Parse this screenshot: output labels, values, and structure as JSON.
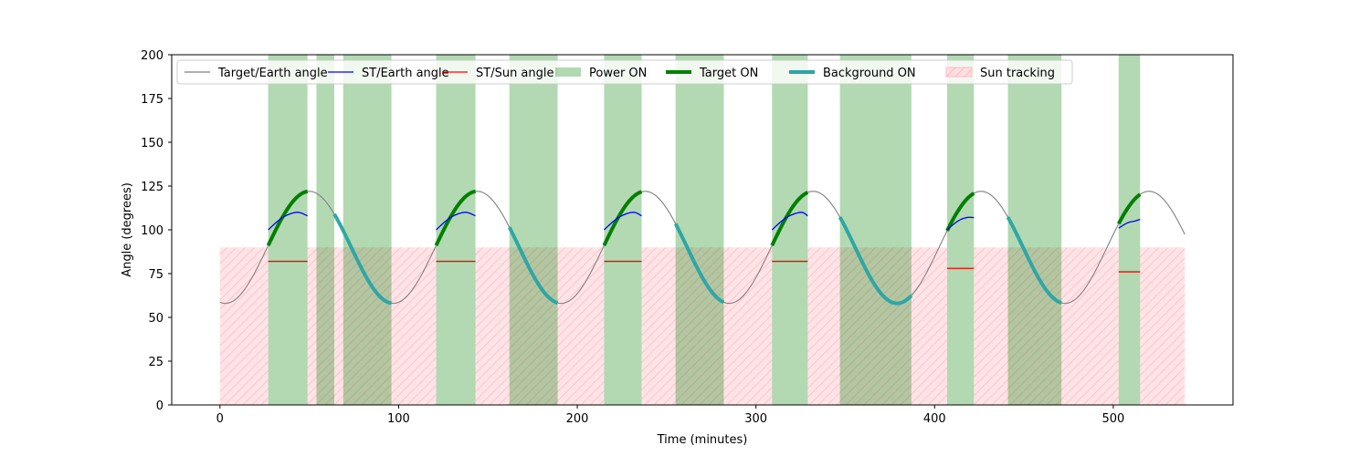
{
  "chart_data": {
    "type": "line",
    "title": "",
    "xlabel": "Time (minutes)",
    "ylabel": "Angle (degrees)",
    "xlim": [
      -27,
      567
    ],
    "ylim": [
      0,
      200
    ],
    "xticks": [
      0,
      100,
      200,
      300,
      400,
      500
    ],
    "yticks": [
      0,
      25,
      50,
      75,
      100,
      125,
      150,
      175,
      200
    ],
    "grid": false,
    "legend_position": "top",
    "colors": {
      "target_earth": "#808080",
      "st_earth": "#0000ff",
      "st_sun": "#ff0000",
      "power_on": "#b3d9b3",
      "target_on": "#008000",
      "background_on": "#2aa5a5",
      "sun_tracking_fill": "#ffdfe3",
      "sun_tracking_hatch": "#ffb8c0"
    },
    "legend": [
      {
        "key": "target_earth",
        "label": "Target/Earth angle",
        "kind": "line"
      },
      {
        "key": "st_earth",
        "label": "ST/Earth angle",
        "kind": "line"
      },
      {
        "key": "st_sun",
        "label": "ST/Sun angle",
        "kind": "line"
      },
      {
        "key": "power_on",
        "label": "Power ON",
        "kind": "patch"
      },
      {
        "key": "target_on",
        "label": "Target ON",
        "kind": "thick"
      },
      {
        "key": "background_on",
        "label": "Background ON",
        "kind": "thick"
      },
      {
        "key": "sun_tracking",
        "label": "Sun tracking",
        "kind": "hatch"
      }
    ],
    "target_earth_curve": {
      "x_range": [
        0,
        540
      ],
      "period": 94,
      "mean": 90,
      "amplitude": 32,
      "phase_min": 3
    },
    "power_on_intervals": [
      [
        27,
        49
      ],
      [
        54,
        64
      ],
      [
        69,
        96
      ],
      [
        121,
        143
      ],
      [
        162,
        189
      ],
      [
        215,
        236
      ],
      [
        255,
        282
      ],
      [
        309,
        329
      ],
      [
        347,
        387
      ],
      [
        407,
        422
      ],
      [
        441,
        471
      ],
      [
        503,
        515
      ]
    ],
    "sun_tracking_intervals": [
      [
        0,
        27
      ],
      [
        49,
        121
      ],
      [
        143,
        215
      ],
      [
        236,
        309
      ],
      [
        329,
        407
      ],
      [
        422,
        503
      ],
      [
        515,
        540
      ]
    ],
    "sun_tracking_max_angle": 90,
    "target_on_intervals": [
      [
        27,
        49
      ],
      [
        121,
        143
      ],
      [
        215,
        236
      ],
      [
        309,
        329
      ],
      [
        407,
        422
      ],
      [
        503,
        515
      ]
    ],
    "background_on_intervals": [
      [
        64,
        96
      ],
      [
        162,
        189
      ],
      [
        255,
        282
      ],
      [
        347,
        387
      ],
      [
        441,
        471
      ]
    ],
    "st_earth_segments": [
      {
        "x": [
          27,
          35,
          43,
          49
        ],
        "y": [
          100,
          107,
          110,
          108
        ]
      },
      {
        "x": [
          121,
          129,
          137,
          143
        ],
        "y": [
          100,
          107,
          110,
          108
        ]
      },
      {
        "x": [
          215,
          223,
          231,
          236
        ],
        "y": [
          100,
          107,
          110,
          108
        ]
      },
      {
        "x": [
          309,
          317,
          325,
          329
        ],
        "y": [
          100,
          107,
          110,
          108
        ]
      },
      {
        "x": [
          407,
          413,
          418,
          422
        ],
        "y": [
          100,
          105,
          107,
          107
        ]
      },
      {
        "x": [
          503,
          508,
          512,
          515
        ],
        "y": [
          101,
          104,
          105,
          106
        ]
      }
    ],
    "st_sun_segments": [
      {
        "x": [
          27,
          49
        ],
        "y": [
          82,
          82
        ]
      },
      {
        "x": [
          121,
          143
        ],
        "y": [
          82,
          82
        ]
      },
      {
        "x": [
          215,
          236
        ],
        "y": [
          82,
          82
        ]
      },
      {
        "x": [
          309,
          329
        ],
        "y": [
          82,
          82
        ]
      },
      {
        "x": [
          407,
          422
        ],
        "y": [
          78,
          78
        ]
      },
      {
        "x": [
          503,
          515
        ],
        "y": [
          76,
          76
        ]
      }
    ]
  }
}
